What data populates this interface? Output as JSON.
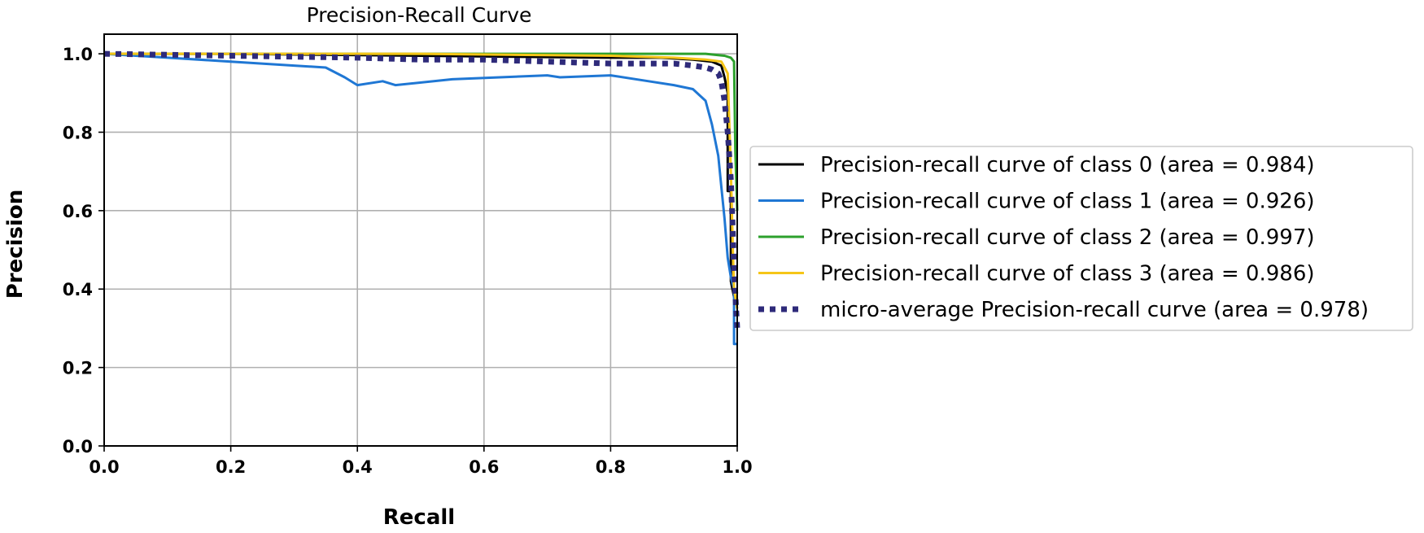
{
  "chart_data": {
    "type": "line",
    "title": "Precision-Recall Curve",
    "xlabel": "Recall",
    "ylabel": "Precision",
    "xlim": [
      0.0,
      1.0
    ],
    "ylim": [
      0.0,
      1.05
    ],
    "grid": true,
    "legend_position": "outside-right",
    "xticks": [
      0.0,
      0.2,
      0.4,
      0.6,
      0.8,
      1.0
    ],
    "xtick_labels": [
      "0.0",
      "0.2",
      "0.4",
      "0.6",
      "0.8",
      "1.0"
    ],
    "yticks": [
      0.0,
      0.2,
      0.4,
      0.6,
      0.8,
      1.0
    ],
    "ytick_labels": [
      "0.0",
      "0.2",
      "0.4",
      "0.6",
      "0.8",
      "1.0"
    ],
    "series": [
      {
        "name": "Precision-recall curve of class 0 (area = 0.984)",
        "color": "#000000",
        "style": "solid",
        "x": [
          0.0,
          0.2,
          0.5,
          0.8,
          0.88,
          0.93,
          0.96,
          0.975,
          0.98,
          0.985,
          0.985,
          0.99,
          0.99,
          0.995,
          1.0
        ],
        "y": [
          1.0,
          1.0,
          0.995,
          0.99,
          0.99,
          0.985,
          0.98,
          0.97,
          0.94,
          0.9,
          0.65,
          0.65,
          0.42,
          0.38,
          0.38
        ]
      },
      {
        "name": "Precision-recall curve of class 1 (area = 0.926)",
        "color": "#1f77d4",
        "style": "solid",
        "x": [
          0.0,
          0.1,
          0.2,
          0.3,
          0.35,
          0.38,
          0.4,
          0.44,
          0.46,
          0.55,
          0.7,
          0.72,
          0.8,
          0.86,
          0.9,
          0.93,
          0.95,
          0.96,
          0.965,
          0.97,
          0.975,
          0.98,
          0.985,
          0.99,
          0.995,
          0.995,
          1.0
        ],
        "y": [
          1.0,
          0.99,
          0.98,
          0.97,
          0.965,
          0.94,
          0.92,
          0.93,
          0.92,
          0.935,
          0.945,
          0.94,
          0.945,
          0.93,
          0.92,
          0.91,
          0.88,
          0.82,
          0.78,
          0.74,
          0.66,
          0.58,
          0.48,
          0.43,
          0.4,
          0.26,
          0.26
        ]
      },
      {
        "name": "Precision-recall curve of class 2 (area = 0.997)",
        "color": "#2ca02c",
        "style": "solid",
        "x": [
          0.0,
          0.5,
          0.85,
          0.95,
          0.98,
          0.99,
          0.995,
          0.997,
          1.0
        ],
        "y": [
          1.0,
          1.0,
          1.0,
          1.0,
          0.995,
          0.99,
          0.98,
          0.75,
          0.6
        ]
      },
      {
        "name": "Precision-recall curve of class 3 (area = 0.986)",
        "color": "#f5c518",
        "style": "solid",
        "x": [
          0.0,
          0.5,
          0.8,
          0.9,
          0.95,
          0.975,
          0.985,
          0.99,
          0.993,
          0.995,
          1.0
        ],
        "y": [
          1.0,
          1.0,
          0.995,
          0.99,
          0.985,
          0.98,
          0.95,
          0.7,
          0.5,
          0.4,
          0.35
        ]
      },
      {
        "name": "micro-average Precision-recall curve (area = 0.978)",
        "color": "#2e2a7a",
        "style": "dotted",
        "x": [
          0.0,
          0.2,
          0.4,
          0.5,
          0.6,
          0.7,
          0.8,
          0.85,
          0.9,
          0.93,
          0.95,
          0.96,
          0.97,
          0.975,
          0.98,
          0.985,
          0.99,
          0.993,
          0.995,
          0.998,
          1.0
        ],
        "y": [
          1.0,
          0.995,
          0.99,
          0.985,
          0.985,
          0.98,
          0.975,
          0.975,
          0.975,
          0.97,
          0.965,
          0.96,
          0.95,
          0.93,
          0.88,
          0.8,
          0.68,
          0.55,
          0.45,
          0.36,
          0.3
        ]
      }
    ]
  }
}
